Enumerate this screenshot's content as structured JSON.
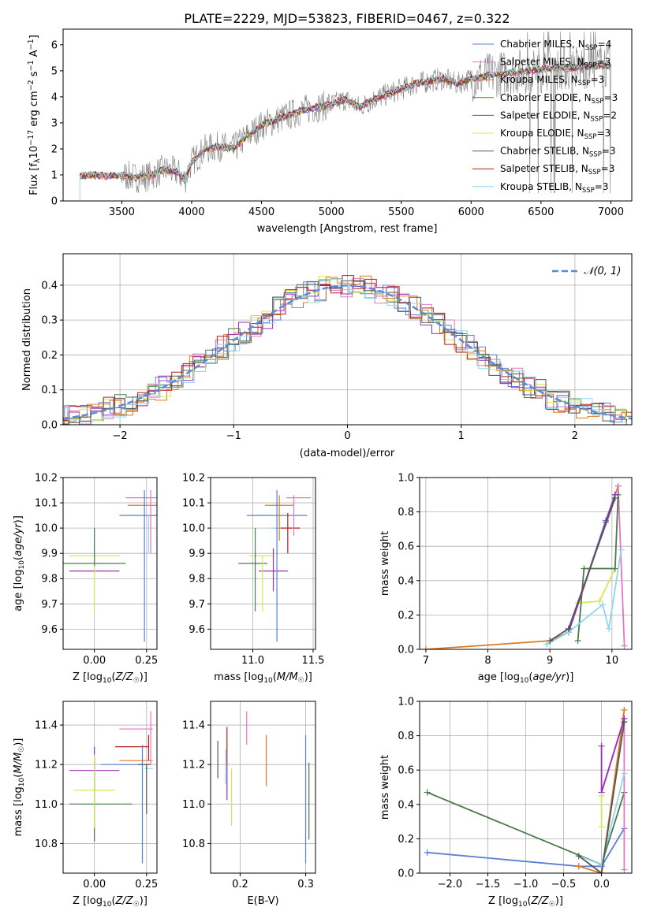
{
  "figure": {
    "title": "PLATE=2229, MJD=53823, FIBERID=0467, z=0.322"
  },
  "colors": {
    "chabrier_miles": "#5b7fd3",
    "salpeter_miles": "#e377c2",
    "kroupa_miles": "#e07a22",
    "chabrier_elodie": "#4a7a4a",
    "salpeter_elodie": "#9b2fb8",
    "kroupa_elodie": "#d4e85a",
    "chabrier_stelib": "#555555",
    "salpeter_stelib": "#b01f1f",
    "kroupa_stelib": "#8ed8e8",
    "data_gray": "#808080",
    "gauss": "#5b8bd8"
  },
  "legend_spectrum": [
    {
      "key": "chabrier_miles",
      "label": "Chabrier MILES, N",
      "sub": "SSP",
      "suffix": "=4"
    },
    {
      "key": "salpeter_miles",
      "label": "Salpeter MILES, N",
      "sub": "SSP",
      "suffix": "=3"
    },
    {
      "key": "kroupa_miles",
      "label": "Kroupa MILES, N",
      "sub": "SSP",
      "suffix": "=3"
    },
    {
      "key": "chabrier_elodie",
      "label": "Chabrier ELODIE, N",
      "sub": "SSP",
      "suffix": "=3"
    },
    {
      "key": "salpeter_elodie",
      "label": "Salpeter ELODIE, N",
      "sub": "SSP",
      "suffix": "=2"
    },
    {
      "key": "kroupa_elodie",
      "label": "Kroupa ELODIE, N",
      "sub": "SSP",
      "suffix": "=3"
    },
    {
      "key": "chabrier_stelib",
      "label": "Chabrier STELIB, N",
      "sub": "SSP",
      "suffix": "=3"
    },
    {
      "key": "salpeter_stelib",
      "label": "Salpeter STELIB, N",
      "sub": "SSP",
      "suffix": "=3"
    },
    {
      "key": "kroupa_stelib",
      "label": "Kroupa STELIB, N",
      "sub": "SSP",
      "suffix": "=3"
    }
  ],
  "legend_hist": {
    "label": "𝒩(0, 1)"
  },
  "chart_data": [
    {
      "id": "spectrum",
      "type": "line",
      "xlabel": "wavelength [Angstrom, rest frame]",
      "ylabel": "Flux [f_λ 10^-17 erg cm^-2 s^-1 A^-1]",
      "xlim": [
        3080,
        7150
      ],
      "ylim": [
        0,
        6.6
      ],
      "xticks": [
        3500,
        4000,
        4500,
        5000,
        5500,
        6000,
        6500,
        7000
      ],
      "yticks": [
        0,
        1,
        2,
        3,
        4,
        5,
        6
      ],
      "model_continuum": [
        [
          3200,
          0.95
        ],
        [
          3300,
          1.0
        ],
        [
          3400,
          0.95
        ],
        [
          3500,
          1.0
        ],
        [
          3600,
          0.9
        ],
        [
          3700,
          0.95
        ],
        [
          3800,
          1.2
        ],
        [
          3900,
          1.1
        ],
        [
          3950,
          0.8
        ],
        [
          4000,
          1.5
        ],
        [
          4100,
          2.0
        ],
        [
          4200,
          2.1
        ],
        [
          4300,
          2.0
        ],
        [
          4400,
          2.5
        ],
        [
          4500,
          2.9
        ],
        [
          4600,
          3.1
        ],
        [
          4700,
          3.3
        ],
        [
          4800,
          3.5
        ],
        [
          4900,
          3.6
        ],
        [
          5000,
          3.7
        ],
        [
          5100,
          3.9
        ],
        [
          5200,
          3.6
        ],
        [
          5300,
          3.9
        ],
        [
          5400,
          4.1
        ],
        [
          5500,
          4.3
        ],
        [
          5600,
          4.5
        ],
        [
          5700,
          4.6
        ],
        [
          5800,
          4.7
        ],
        [
          5900,
          4.5
        ],
        [
          6000,
          4.7
        ],
        [
          6100,
          4.8
        ],
        [
          6200,
          4.9
        ],
        [
          6300,
          4.95
        ],
        [
          6400,
          5.0
        ],
        [
          6500,
          5.05
        ],
        [
          6600,
          5.1
        ],
        [
          6700,
          5.1
        ],
        [
          6800,
          5.15
        ],
        [
          6900,
          5.2
        ],
        [
          7000,
          5.2
        ]
      ],
      "grid": false
    },
    {
      "id": "residual_hist",
      "type": "line",
      "xlabel": "(data-model)/error",
      "ylabel": "Normed distribution",
      "xlim": [
        -2.5,
        2.5
      ],
      "ylim": [
        0,
        0.49
      ],
      "xticks": [
        -2,
        -1,
        0,
        1,
        2
      ],
      "yticks": [
        0.0,
        0.1,
        0.2,
        0.3,
        0.4
      ],
      "gaussian": {
        "mean": 0,
        "sigma": 1,
        "name": "𝒩(0, 1)"
      },
      "grid": true
    },
    {
      "id": "age_vs_Z",
      "type": "scatter",
      "xlabel": "Z [log10(Z/Z☉)]",
      "ylabel": "age [log10(age/yr)]",
      "xlim": [
        -0.15,
        0.3
      ],
      "ylim": [
        9.52,
        10.2
      ],
      "xticks": [
        0.0,
        0.25
      ],
      "yticks": [
        9.6,
        9.7,
        9.8,
        9.9,
        10.0,
        10.1,
        10.2
      ],
      "points": [
        {
          "key": "chabrier_miles",
          "x": 0.22,
          "xerr": 0.1,
          "y": 10.05,
          "yerr": 0.0
        },
        {
          "key": "salpeter_miles",
          "x": 0.25,
          "xerr": 0.1,
          "y": 10.12,
          "yerr": 0.0
        },
        {
          "key": "kroupa_miles",
          "x": 0.24,
          "xerr": 0.08,
          "y": 10.09,
          "yerr": 0.0
        },
        {
          "key": "chabrier_elodie",
          "x": 0.0,
          "xerr": 0.15,
          "y": 9.86,
          "yerr": 0.0
        },
        {
          "key": "salpeter_elodie",
          "x": 0.0,
          "xerr": 0.12,
          "y": 9.83,
          "yerr": 0.0
        },
        {
          "key": "kroupa_elodie",
          "x": 0.0,
          "xerr": 0.12,
          "y": 9.89,
          "yerr": 0.0
        },
        {
          "key": "chabrier_stelib",
          "x": 0.26,
          "xerr": 0.0,
          "y": 10.0,
          "yerr": 0.0
        },
        {
          "key": "salpeter_stelib",
          "x": 0.27,
          "xerr": 0.0,
          "y": 10.04,
          "yerr": 0.0
        },
        {
          "key": "kroupa_stelib",
          "x": 0.27,
          "xerr": 0.0,
          "y": 10.0,
          "yerr": 0.0
        }
      ],
      "vlines": [
        {
          "key": "chabrier_miles",
          "x": 0.24,
          "y0": 9.55,
          "y1": 10.15
        },
        {
          "key": "kroupa_elodie",
          "x": 0.0,
          "y0": 9.67,
          "y1": 9.89
        },
        {
          "key": "salpeter_miles",
          "x": 0.27,
          "y0": 9.9,
          "y1": 10.15
        },
        {
          "key": "kroupa_stelib",
          "x": 0.26,
          "y0": 9.9,
          "y1": 10.05
        },
        {
          "key": "chabrier_elodie",
          "x": 0.0,
          "y0": 9.85,
          "y1": 10.0
        }
      ],
      "grid": true
    },
    {
      "id": "age_vs_mass",
      "type": "scatter",
      "xlabel": "mass [log10(M/M☉)]",
      "ylabel": "",
      "xlim": [
        10.65,
        11.52
      ],
      "ylim": [
        9.52,
        10.2
      ],
      "xticks": [
        11.0,
        11.5
      ],
      "yticks": [
        9.6,
        9.7,
        9.8,
        9.9,
        10.0,
        10.1,
        10.2
      ],
      "points": [
        {
          "key": "chabrier_miles",
          "x": 11.2,
          "xerr": 0.25,
          "y": 10.05
        },
        {
          "key": "salpeter_miles",
          "x": 11.38,
          "xerr": 0.1,
          "y": 10.12
        },
        {
          "key": "kroupa_miles",
          "x": 11.22,
          "xerr": 0.12,
          "y": 10.09
        },
        {
          "key": "chabrier_elodie",
          "x": 11.0,
          "xerr": 0.12,
          "y": 9.86
        },
        {
          "key": "salpeter_elodie",
          "x": 11.17,
          "xerr": 0.12,
          "y": 9.83
        },
        {
          "key": "kroupa_elodie",
          "x": 11.07,
          "xerr": 0.1,
          "y": 9.89
        },
        {
          "key": "chabrier_stelib",
          "x": 11.2,
          "xerr": 0.03,
          "y": 10.0
        },
        {
          "key": "salpeter_stelib",
          "x": 11.29,
          "xerr": 0.1,
          "y": 10.0
        },
        {
          "key": "kroupa_stelib",
          "x": 11.18,
          "xerr": 0.05,
          "y": 10.0
        }
      ],
      "vlines": [
        {
          "key": "chabrier_miles",
          "x": 11.2,
          "y0": 9.55,
          "y1": 10.15
        },
        {
          "key": "salpeter_miles",
          "x": 11.34,
          "y0": 9.97,
          "y1": 10.13
        },
        {
          "key": "chabrier_elodie",
          "x": 11.02,
          "y0": 9.67,
          "y1": 10.0
        },
        {
          "key": "kroupa_elodie",
          "x": 11.08,
          "y0": 9.67,
          "y1": 9.89
        },
        {
          "key": "salpeter_elodie",
          "x": 11.17,
          "y0": 9.75,
          "y1": 9.92
        },
        {
          "key": "salpeter_stelib",
          "x": 11.29,
          "y0": 9.9,
          "y1": 10.06
        },
        {
          "key": "kroupa_miles",
          "x": 11.22,
          "y0": 9.95,
          "y1": 10.13
        }
      ],
      "grid": true
    },
    {
      "id": "weight_vs_age",
      "type": "line",
      "xlabel": "age [log10(age/yr)]",
      "ylabel": "mass weight",
      "xlim": [
        6.9,
        10.32
      ],
      "ylim": [
        0,
        1.0
      ],
      "xticks": [
        7,
        8,
        9,
        10
      ],
      "yticks": [
        0.0,
        0.2,
        0.4,
        0.6,
        0.8,
        1.0
      ],
      "series": [
        {
          "key": "kroupa_miles",
          "x": [
            7.0,
            9.0,
            9.3,
            10.1
          ],
          "y": [
            0.0,
            0.05,
            0.1,
            0.95
          ]
        },
        {
          "key": "chabrier_miles",
          "x": [
            8.95,
            9.3,
            9.9,
            10.05
          ],
          "y": [
            0.03,
            0.1,
            0.75,
            0.9
          ]
        },
        {
          "key": "salpeter_miles",
          "x": [
            10.1,
            10.2
          ],
          "y": [
            0.95,
            0.02
          ]
        },
        {
          "key": "kroupa_elodie",
          "x": [
            9.45,
            9.8,
            10.05
          ],
          "y": [
            0.27,
            0.28,
            0.47
          ]
        },
        {
          "key": "chabrier_elodie",
          "x": [
            9.45,
            9.55,
            10.05,
            10.1
          ],
          "y": [
            0.05,
            0.47,
            0.47,
            0.9
          ]
        },
        {
          "key": "salpeter_elodie",
          "x": [
            9.3,
            9.9,
            10.05
          ],
          "y": [
            0.1,
            0.74,
            0.9
          ]
        },
        {
          "key": "kroupa_stelib",
          "x": [
            8.95,
            9.3,
            9.85,
            9.95,
            10.15
          ],
          "y": [
            0.03,
            0.1,
            0.26,
            0.12,
            0.58
          ]
        },
        {
          "key": "chabrier_stelib",
          "x": [
            9.0,
            9.3,
            10.05
          ],
          "y": [
            0.05,
            0.12,
            0.88
          ]
        }
      ],
      "grid": true
    },
    {
      "id": "mass_vs_Z",
      "type": "scatter",
      "xlabel": "Z [log10(Z/Z☉)]",
      "ylabel": "mass [log10(M/M☉)]",
      "xlim": [
        -0.15,
        0.3
      ],
      "ylim": [
        10.65,
        11.52
      ],
      "xticks": [
        0.0,
        0.25
      ],
      "yticks": [
        10.8,
        11.0,
        11.2,
        11.4
      ],
      "points": [
        {
          "key": "chabrier_miles",
          "x": 0.15,
          "xerr": 0.12,
          "y": 11.2
        },
        {
          "key": "salpeter_miles",
          "x": 0.2,
          "xerr": 0.08,
          "y": 11.38
        },
        {
          "key": "kroupa_miles",
          "x": 0.2,
          "xerr": 0.08,
          "y": 11.22
        },
        {
          "key": "chabrier_elodie",
          "x": 0.03,
          "xerr": 0.15,
          "y": 11.0
        },
        {
          "key": "salpeter_elodie",
          "x": 0.0,
          "xerr": 0.12,
          "y": 11.17
        },
        {
          "key": "kroupa_elodie",
          "x": 0.0,
          "xerr": 0.1,
          "y": 11.07
        },
        {
          "key": "chabrier_stelib",
          "x": 0.24,
          "xerr": 0.03,
          "y": 11.2
        },
        {
          "key": "salpeter_stelib",
          "x": 0.18,
          "xerr": 0.08,
          "y": 11.29
        },
        {
          "key": "kroupa_stelib",
          "x": 0.26,
          "xerr": 0.02,
          "y": 11.18
        }
      ],
      "vlines": [
        {
          "key": "chabrier_miles",
          "x": 0.23,
          "y0": 10.7,
          "y1": 11.3
        },
        {
          "key": "salpeter_miles",
          "x": 0.27,
          "y0": 11.2,
          "y1": 11.47
        },
        {
          "key": "chabrier_elodie",
          "x": 0.0,
          "y0": 10.81,
          "y1": 11.22
        },
        {
          "key": "salpeter_elodie",
          "x": 0.0,
          "y0": 11.07,
          "y1": 11.29
        },
        {
          "key": "kroupa_elodie",
          "x": 0.0,
          "y0": 10.88,
          "y1": 11.25
        },
        {
          "key": "salpeter_stelib",
          "x": 0.26,
          "y0": 11.22,
          "y1": 11.35
        },
        {
          "key": "chabrier_stelib",
          "x": 0.25,
          "y0": 10.95,
          "y1": 11.2
        }
      ],
      "grid": true
    },
    {
      "id": "mass_vs_ebv",
      "type": "scatter",
      "xlabel": "E(B-V)",
      "ylabel": "",
      "xlim": [
        0.155,
        0.315
      ],
      "ylim": [
        10.65,
        11.52
      ],
      "xticks": [
        0.2,
        0.3
      ],
      "yticks": [
        10.8,
        11.0,
        11.2,
        11.4
      ],
      "vlines": [
        {
          "key": "chabrier_stelib",
          "x": 0.166,
          "y0": 11.13,
          "y1": 11.32
        },
        {
          "key": "kroupa_stelib",
          "x": 0.178,
          "y0": 11.1,
          "y1": 11.28
        },
        {
          "key": "salpeter_elodie",
          "x": 0.18,
          "y0": 11.02,
          "y1": 11.2
        },
        {
          "key": "salpeter_stelib",
          "x": 0.18,
          "y0": 11.2,
          "y1": 11.39
        },
        {
          "key": "kroupa_elodie",
          "x": 0.187,
          "y0": 10.89,
          "y1": 11.18
        },
        {
          "key": "salpeter_miles",
          "x": 0.21,
          "y0": 11.3,
          "y1": 11.47
        },
        {
          "key": "kroupa_miles",
          "x": 0.24,
          "y0": 11.09,
          "y1": 11.35
        },
        {
          "key": "chabrier_miles",
          "x": 0.3,
          "y0": 10.7,
          "y1": 11.35
        },
        {
          "key": "chabrier_elodie",
          "x": 0.305,
          "y0": 10.82,
          "y1": 11.21
        }
      ],
      "grid": true
    },
    {
      "id": "weight_vs_Z",
      "type": "line",
      "xlabel": "Z [log10(Z/Z☉)]",
      "ylabel": "mass weight",
      "xlim": [
        -2.4,
        0.4
      ],
      "ylim": [
        0,
        1.0
      ],
      "xticks": [
        -2.0,
        -1.5,
        -1.0,
        -0.5,
        0.0
      ],
      "yticks": [
        0.0,
        0.2,
        0.4,
        0.6,
        0.8,
        1.0
      ],
      "series": [
        {
          "key": "chabrier_miles",
          "x": [
            -2.3,
            -0.3,
            0.0,
            0.3
          ],
          "y": [
            0.12,
            0.04,
            0.04,
            0.26
          ]
        },
        {
          "key": "chabrier_elodie",
          "x": [
            -2.3,
            0.0,
            0.3
          ],
          "y": [
            0.47,
            0.05,
            0.47
          ]
        },
        {
          "key": "kroupa_miles",
          "x": [
            -0.3,
            0.0,
            0.3
          ],
          "y": [
            0.04,
            0.0,
            0.95
          ]
        },
        {
          "key": "salpeter_miles",
          "x": [
            0.0,
            0.3,
            0.3
          ],
          "y": [
            0.47,
            0.9,
            0.02
          ]
        },
        {
          "key": "salpeter_elodie",
          "x": [
            0.0,
            0.0,
            0.3
          ],
          "y": [
            0.74,
            0.47,
            0.9
          ]
        },
        {
          "key": "kroupa_elodie",
          "x": [
            0.0,
            0.0
          ],
          "y": [
            0.27,
            0.45
          ]
        },
        {
          "key": "kroupa_stelib",
          "x": [
            -0.3,
            0.0,
            0.3
          ],
          "y": [
            0.1,
            0.05,
            0.58
          ]
        },
        {
          "key": "chabrier_stelib",
          "x": [
            -0.3,
            0.0,
            0.3
          ],
          "y": [
            0.1,
            0.0,
            0.88
          ]
        }
      ],
      "grid": true
    }
  ]
}
